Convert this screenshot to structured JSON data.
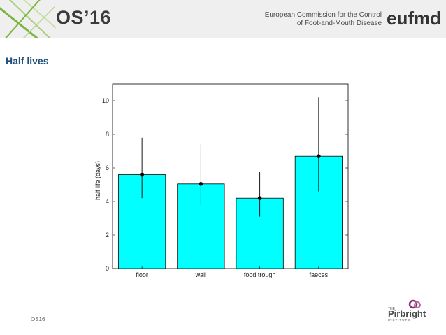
{
  "header": {
    "title": "OS’16",
    "org_line1": "European Commission for the Control",
    "org_line2": "of Foot-and-Mouth Disease",
    "logo_text": "eufmd",
    "brand_colors": {
      "green": "#7bb541",
      "red": "#c0272d",
      "dark": "#333333"
    }
  },
  "slide": {
    "title": "Half lives",
    "footer_code": "OS16"
  },
  "pirbright": {
    "small": "THE",
    "name": "Pirbright",
    "sub": "INSTITUTE",
    "accent": "#8b2d6e"
  },
  "chart_data": {
    "type": "bar",
    "categories": [
      "floor",
      "wall",
      "food trough",
      "faeces"
    ],
    "values": [
      5.6,
      5.05,
      4.2,
      6.7
    ],
    "error_low": [
      4.2,
      3.8,
      3.1,
      4.6
    ],
    "error_high": [
      7.8,
      7.4,
      5.75,
      10.2
    ],
    "ylabel": "half life (days)",
    "xlabel": "",
    "ylim": [
      0,
      11
    ],
    "yticks": [
      0,
      2,
      4,
      6,
      8,
      10
    ],
    "bar_color": "#00ffff",
    "grid": false
  }
}
